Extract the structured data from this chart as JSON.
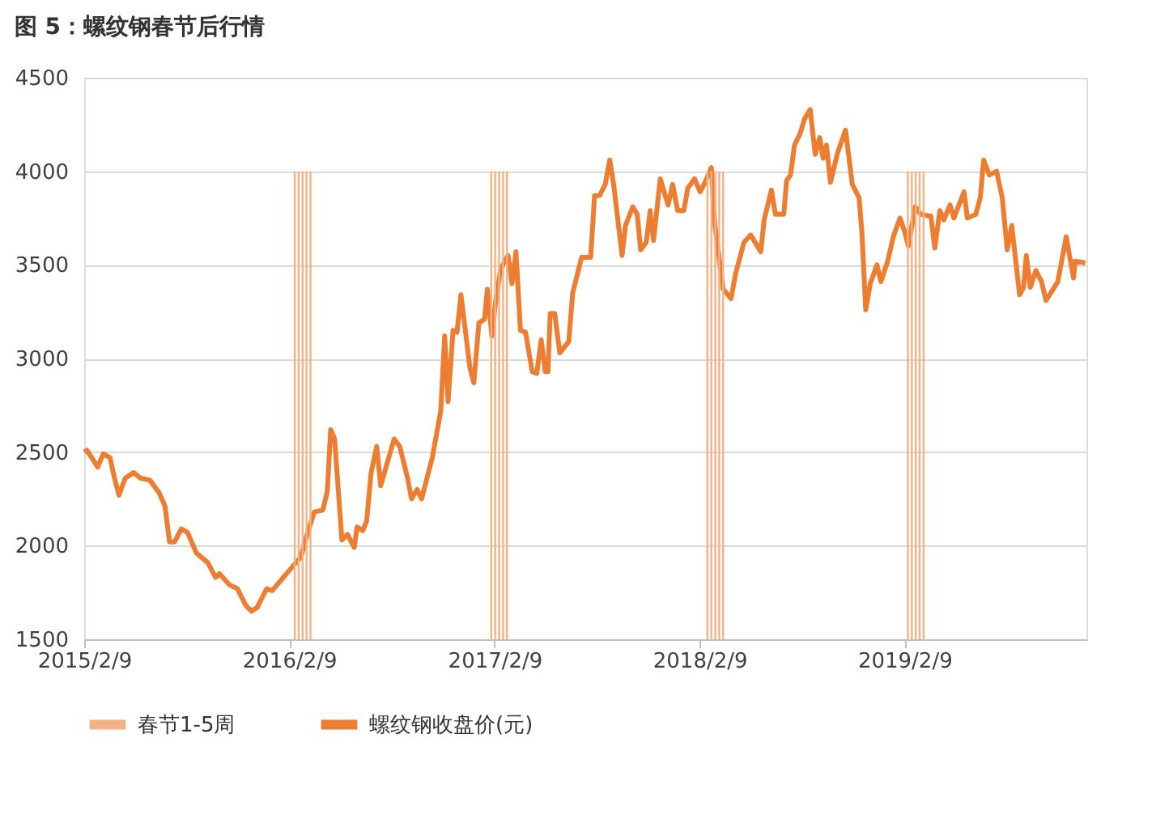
{
  "chart_data": {
    "type": "line",
    "title": "图 5：螺纹钢春节后行情",
    "xlim": [
      "2015-02-09",
      "2019-12-30"
    ],
    "xticks": [
      {
        "value": "2015-02-09",
        "label": "2015/2/9"
      },
      {
        "value": "2016-02-09",
        "label": "2016/2/9"
      },
      {
        "value": "2017-02-09",
        "label": "2017/2/9"
      },
      {
        "value": "2018-02-09",
        "label": "2018/2/9"
      },
      {
        "value": "2019-02-09",
        "label": "2019/2/9"
      }
    ],
    "ylim": [
      1500,
      4500
    ],
    "yticks": [
      1500,
      2000,
      2500,
      3000,
      3500,
      4000,
      4500
    ],
    "grid": "y",
    "legend": "bottom",
    "marker": "none",
    "line_style": "solid",
    "series": [
      {
        "name": "春节1-5周",
        "type": "bar",
        "color": "#f4b183",
        "x": [
          "2016-02-19",
          "2016-02-26",
          "2016-03-04",
          "2016-03-11",
          "2016-03-18",
          "2017-02-03",
          "2017-02-10",
          "2017-02-17",
          "2017-02-24",
          "2017-03-03",
          "2018-02-23",
          "2018-03-02",
          "2018-03-09",
          "2018-03-16",
          "2018-03-23",
          "2019-02-15",
          "2019-02-22",
          "2019-03-01",
          "2019-03-08",
          "2019-03-15"
        ],
        "values": [
          4000,
          4000,
          4000,
          4000,
          4000,
          4000,
          4000,
          4000,
          4000,
          4000,
          4000,
          4000,
          4000,
          4000,
          4000,
          4000,
          4000,
          4000,
          4000,
          4000
        ]
      },
      {
        "name": "螺纹钢收盘价(元)",
        "color": "#ed7d31",
        "x": [
          "2015-02-09",
          "2015-02-14",
          "2015-03-05",
          "2015-03-15",
          "2015-03-27",
          "2015-04-04",
          "2015-04-12",
          "2015-04-23",
          "2015-05-08",
          "2015-05-21",
          "2015-06-06",
          "2015-06-23",
          "2015-07-03",
          "2015-07-11",
          "2015-07-20",
          "2015-08-01",
          "2015-08-12",
          "2015-08-28",
          "2015-09-17",
          "2015-10-01",
          "2015-10-08",
          "2015-10-26",
          "2015-11-09",
          "2015-11-24",
          "2015-12-04",
          "2015-12-14",
          "2015-12-31",
          "2016-01-10",
          "2016-01-24",
          "2016-02-10",
          "2016-03-01",
          "2016-03-13",
          "2016-03-25",
          "2016-04-09",
          "2016-04-17",
          "2016-04-23",
          "2016-04-30",
          "2016-05-13",
          "2016-05-23",
          "2016-06-04",
          "2016-06-09",
          "2016-06-19",
          "2016-06-26",
          "2016-07-04",
          "2016-07-14",
          "2016-07-21",
          "2016-08-14",
          "2016-08-24",
          "2016-09-07",
          "2016-09-14",
          "2016-09-24",
          "2016-10-02",
          "2016-10-21",
          "2016-11-05",
          "2016-11-12",
          "2016-11-18",
          "2016-11-27",
          "2016-12-04",
          "2016-12-11",
          "2016-12-27",
          "2017-01-03",
          "2017-01-12",
          "2017-01-22",
          "2017-01-27",
          "2017-02-04",
          "2017-02-11",
          "2017-02-20",
          "2017-03-05",
          "2017-03-12",
          "2017-03-19",
          "2017-03-27",
          "2017-04-05",
          "2017-04-17",
          "2017-04-25",
          "2017-05-03",
          "2017-05-10",
          "2017-05-15",
          "2017-05-19",
          "2017-05-27",
          "2017-06-05",
          "2017-06-21",
          "2017-06-28",
          "2017-07-14",
          "2017-07-30",
          "2017-08-06",
          "2017-08-15",
          "2017-08-25",
          "2017-09-02",
          "2017-09-09",
          "2017-09-24",
          "2017-09-30",
          "2017-10-13",
          "2017-10-21",
          "2017-10-27",
          "2017-11-06",
          "2017-11-13",
          "2017-11-19",
          "2017-12-01",
          "2017-12-15",
          "2017-12-23",
          "2018-01-01",
          "2018-01-12",
          "2018-01-19",
          "2018-01-31",
          "2018-02-10",
          "2018-02-17",
          "2018-03-02",
          "2018-03-08",
          "2018-03-23",
          "2018-04-06",
          "2018-04-14",
          "2018-04-29",
          "2018-05-11",
          "2018-05-29",
          "2018-06-04",
          "2018-06-17",
          "2018-06-24",
          "2018-07-09",
          "2018-07-14",
          "2018-07-21",
          "2018-07-28",
          "2018-08-07",
          "2018-08-15",
          "2018-08-25",
          "2018-09-03",
          "2018-09-11",
          "2018-09-17",
          "2018-09-23",
          "2018-09-30",
          "2018-10-13",
          "2018-10-27",
          "2018-11-08",
          "2018-11-20",
          "2018-11-25",
          "2018-12-02",
          "2018-12-10",
          "2018-12-22",
          "2018-12-29",
          "2019-01-10",
          "2019-01-20",
          "2019-02-01",
          "2019-02-09",
          "2019-02-16",
          "2019-02-28",
          "2019-03-10",
          "2019-03-28",
          "2019-04-04",
          "2019-04-13",
          "2019-04-20",
          "2019-05-01",
          "2019-05-08",
          "2019-05-26",
          "2019-06-01",
          "2019-06-16",
          "2019-06-24",
          "2019-06-30",
          "2019-07-10",
          "2019-07-23",
          "2019-08-02",
          "2019-08-11",
          "2019-08-19",
          "2019-09-02",
          "2019-09-09",
          "2019-09-14",
          "2019-09-21",
          "2019-10-01",
          "2019-10-11",
          "2019-10-19",
          "2019-11-09",
          "2019-11-24",
          "2019-12-07",
          "2019-12-10",
          "2019-12-28"
        ],
        "values": [
          2500,
          2510,
          2420,
          2490,
          2470,
          2360,
          2270,
          2360,
          2390,
          2360,
          2350,
          2280,
          2210,
          2020,
          2020,
          2090,
          2070,
          1960,
          1910,
          1830,
          1850,
          1790,
          1770,
          1680,
          1650,
          1670,
          1770,
          1760,
          1810,
          1870,
          1940,
          2070,
          2180,
          2190,
          2290,
          2620,
          2570,
          2030,
          2060,
          1990,
          2100,
          2080,
          2130,
          2390,
          2530,
          2320,
          2570,
          2530,
          2360,
          2250,
          2300,
          2250,
          2470,
          2720,
          3120,
          2770,
          3150,
          3140,
          3340,
          2950,
          2870,
          3190,
          3210,
          3370,
          3120,
          3310,
          3480,
          3550,
          3400,
          3570,
          3150,
          3140,
          2930,
          2920,
          3100,
          2930,
          2930,
          3240,
          3240,
          3030,
          3090,
          3350,
          3540,
          3540,
          3870,
          3870,
          3930,
          4060,
          3930,
          3550,
          3710,
          3810,
          3770,
          3580,
          3620,
          3790,
          3630,
          3960,
          3820,
          3930,
          3790,
          3790,
          3910,
          3960,
          3890,
          3930,
          4020,
          3720,
          3370,
          3320,
          3450,
          3620,
          3660,
          3570,
          3740,
          3900,
          3770,
          3770,
          3950,
          3980,
          4140,
          4200,
          4280,
          4330,
          4090,
          4180,
          4070,
          4140,
          3940,
          4100,
          4220,
          3930,
          3860,
          3680,
          3260,
          3400,
          3500,
          3410,
          3520,
          3650,
          3750,
          3680,
          3600,
          3810,
          3770,
          3760,
          3590,
          3790,
          3740,
          3820,
          3750,
          3890,
          3750,
          3770,
          3860,
          4060,
          3980,
          4000,
          3860,
          3580,
          3710,
          3340,
          3380,
          3550,
          3380,
          3470,
          3410,
          3310,
          3410,
          3650,
          3430,
          3520,
          3510
        ]
      }
    ]
  }
}
